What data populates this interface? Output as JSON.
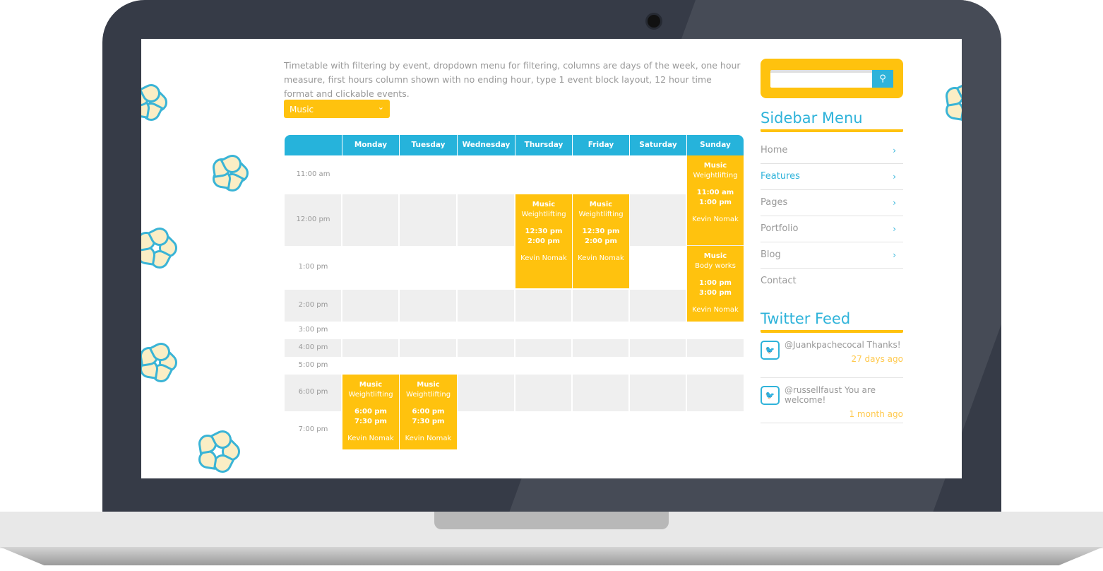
{
  "description": "Timetable with filtering by event, dropdown menu for filtering, columns are days of the week, one hour measure, first hours column shown with no ending hour, type 1 event block layout, 12 hour time format and clickable events.",
  "filter": {
    "selected": "Music"
  },
  "timetable": {
    "days": [
      "Monday",
      "Tuesday",
      "Wednesday",
      "Thursday",
      "Friday",
      "Saturday",
      "Sunday"
    ],
    "hours": [
      "11:00 am",
      "12:00 pm",
      "1:00 pm",
      "2:00 pm",
      "3:00 pm",
      "4:00 pm",
      "5:00 pm",
      "6:00 pm",
      "7:00 pm"
    ],
    "events": [
      {
        "day": "Sunday",
        "category": "Music",
        "name": "Weightlifting",
        "start": "11:00 am",
        "end": "1:00 pm",
        "person": "Kevin Nomak"
      },
      {
        "day": "Thursday",
        "category": "Music",
        "name": "Weightlifting",
        "start": "12:30 pm",
        "end": "2:00 pm",
        "person": "Kevin Nomak"
      },
      {
        "day": "Friday",
        "category": "Music",
        "name": "Weightlifting",
        "start": "12:30 pm",
        "end": "2:00 pm",
        "person": "Kevin Nomak"
      },
      {
        "day": "Sunday",
        "category": "Music",
        "name": "Body works",
        "start": "1:00 pm",
        "end": "3:00 pm",
        "person": "Kevin Nomak"
      },
      {
        "day": "Monday",
        "category": "Music",
        "name": "Weightlifting",
        "start": "6:00 pm",
        "end": "7:30 pm",
        "person": "Kevin Nomak"
      },
      {
        "day": "Tuesday",
        "category": "Music",
        "name": "Weightlifting",
        "start": "6:00 pm",
        "end": "7:30 pm",
        "person": "Kevin Nomak"
      }
    ]
  },
  "sidebar": {
    "search": {
      "placeholder": "",
      "icon": "search-icon"
    },
    "menu_title": "Sidebar Menu",
    "menu": [
      {
        "label": "Home",
        "arrow": "›"
      },
      {
        "label": "Features",
        "arrow": "›",
        "active": true
      },
      {
        "label": "Pages",
        "arrow": "›"
      },
      {
        "label": "Portfolio",
        "arrow": "›"
      },
      {
        "label": "Blog",
        "arrow": "›"
      },
      {
        "label": "Contact"
      }
    ],
    "twitter_title": "Twitter Feed",
    "tweets": [
      {
        "text": "@Juankpachecocal Thanks!",
        "ago": "27 days ago"
      },
      {
        "text": "@russellfaust You are welcome!",
        "ago": "1 month ago"
      }
    ]
  },
  "colors": {
    "accent": "#ffc20e",
    "primary": "#26b3db",
    "bezel": "#363b47"
  }
}
